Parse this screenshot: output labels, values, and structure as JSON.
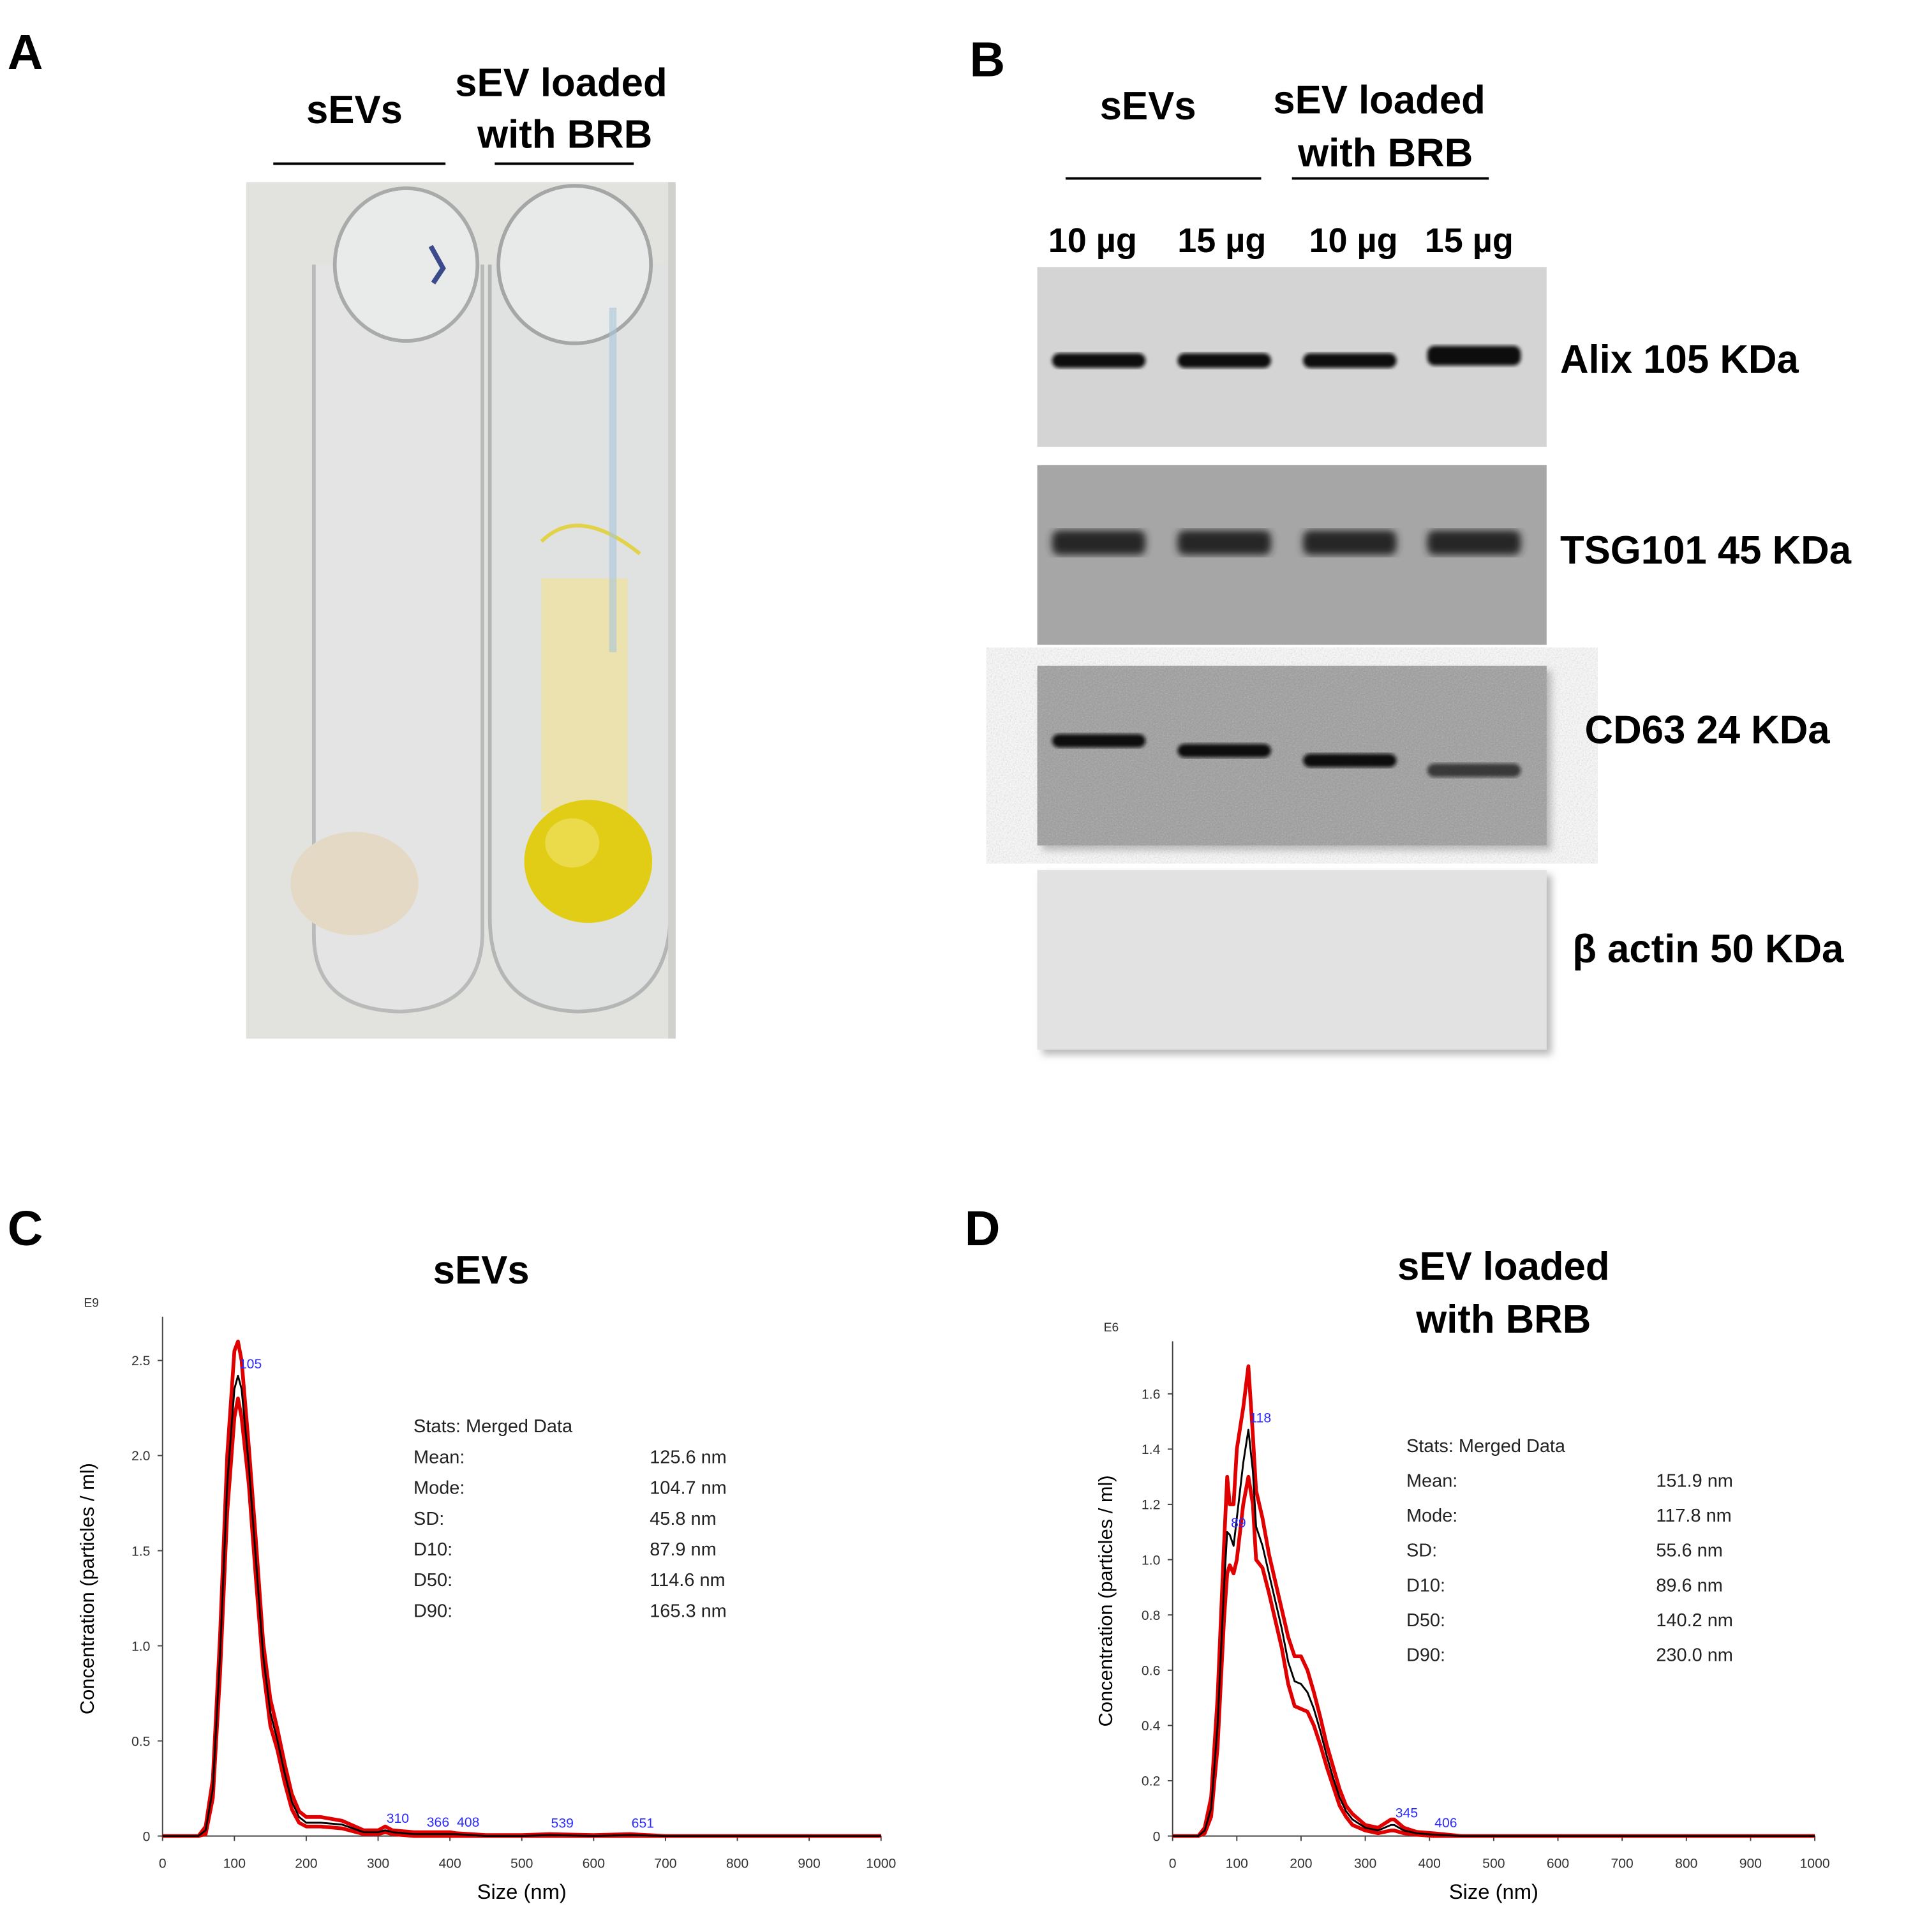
{
  "panel_a": {
    "label": "A",
    "group_1": "sEVs",
    "group_2": [
      "sEV loaded",
      "with BRB"
    ]
  },
  "panel_b": {
    "label": "B",
    "group_1": "sEVs",
    "group_2": [
      "sEV loaded",
      "with BRB"
    ],
    "lanes": [
      "10 µg",
      "15 µg",
      "10 µg",
      "15 µg"
    ],
    "blots": [
      "Alix  105 KDa",
      "TSG101 45 KDa",
      "CD63 24 KDa",
      "β actin  50 KDa"
    ]
  },
  "chart_data": [
    {
      "type": "line",
      "panel": "C",
      "title": [
        "sEVs"
      ],
      "exponent": "E9",
      "x_label": "Size (nm)",
      "y_label": "Concentration (particles / ml)",
      "x": [
        0,
        50,
        60,
        70,
        80,
        90,
        100,
        105,
        110,
        120,
        130,
        140,
        150,
        160,
        170,
        180,
        190,
        200,
        220,
        250,
        280,
        300,
        310,
        320,
        350,
        366,
        400,
        408,
        450,
        500,
        539,
        600,
        651,
        700,
        800,
        900,
        1000
      ],
      "series": [
        {
          "color": "#e00000",
          "values": [
            0,
            0,
            0.05,
            0.3,
            1.05,
            2.0,
            2.55,
            2.6,
            2.5,
            2.05,
            1.55,
            1.02,
            0.72,
            0.56,
            0.38,
            0.22,
            0.13,
            0.1,
            0.1,
            0.08,
            0.03,
            0.03,
            0.05,
            0.03,
            0.02,
            0.02,
            0.02,
            0.015,
            0.005,
            0.005,
            0.01,
            0.005,
            0.01,
            0,
            0,
            0,
            0
          ]
        },
        {
          "color": "#e00000",
          "values": [
            0,
            0,
            0.01,
            0.2,
            0.85,
            1.7,
            2.2,
            2.3,
            2.2,
            1.85,
            1.35,
            0.88,
            0.58,
            0.45,
            0.28,
            0.14,
            0.07,
            0.05,
            0.05,
            0.04,
            0.01,
            0.01,
            0.02,
            0.01,
            0,
            0,
            0,
            0,
            0,
            0,
            0,
            0,
            0,
            0,
            0,
            0,
            0
          ]
        },
        {
          "color": "#000000",
          "values": [
            0,
            0,
            0.03,
            0.25,
            0.95,
            1.85,
            2.35,
            2.42,
            2.35,
            1.95,
            1.45,
            0.95,
            0.65,
            0.5,
            0.33,
            0.18,
            0.1,
            0.07,
            0.07,
            0.06,
            0.02,
            0.02,
            0.03,
            0.02,
            0.01,
            0.01,
            0.01,
            0.01,
            0,
            0,
            0.005,
            0,
            0.005,
            0,
            0,
            0,
            0
          ]
        }
      ],
      "peak_labels": [
        105,
        310,
        366,
        408,
        539,
        651
      ],
      "xlim": [
        0,
        1000
      ],
      "xticks": [
        0,
        100,
        200,
        300,
        400,
        500,
        600,
        700,
        800,
        900,
        1000
      ],
      "ylim": [
        0,
        2.73
      ],
      "yticks": [
        0,
        0.5,
        {
          "value": 1,
          "label": "1.0"
        },
        1.5,
        {
          "value": 2,
          "label": "2.0"
        },
        2.5
      ],
      "stats_title": "Stats: Merged Data",
      "stats": [
        [
          "Mean:",
          "125.6 nm"
        ],
        [
          "Mode:",
          "104.7 nm"
        ],
        [
          "SD:",
          "45.8 nm"
        ],
        [
          "D10:",
          "87.9 nm"
        ],
        [
          "D50:",
          "114.6 nm"
        ],
        [
          "D90:",
          "165.3 nm"
        ]
      ]
    },
    {
      "type": "line",
      "panel": "D",
      "title": [
        "sEV loaded",
        "with BRB"
      ],
      "exponent": "E6",
      "x_label": "Size (nm)",
      "y_label": "Concentration (particles / ml)",
      "x": [
        0,
        40,
        50,
        60,
        70,
        80,
        85,
        89,
        95,
        100,
        110,
        118,
        125,
        130,
        140,
        150,
        160,
        170,
        180,
        190,
        200,
        210,
        220,
        230,
        240,
        250,
        260,
        270,
        280,
        300,
        320,
        340,
        345,
        360,
        380,
        406,
        450,
        500,
        600,
        700,
        800,
        900,
        1000
      ],
      "series": [
        {
          "color": "#e00000",
          "values": [
            0,
            0,
            0.03,
            0.14,
            0.5,
            1.05,
            1.3,
            1.2,
            1.2,
            1.4,
            1.55,
            1.7,
            1.45,
            1.25,
            1.15,
            1.02,
            0.92,
            0.82,
            0.72,
            0.65,
            0.65,
            0.6,
            0.52,
            0.43,
            0.33,
            0.25,
            0.17,
            0.11,
            0.08,
            0.04,
            0.03,
            0.06,
            0.06,
            0.03,
            0.015,
            0.01,
            0,
            0,
            0,
            0,
            0,
            0,
            0
          ]
        },
        {
          "color": "#e00000",
          "values": [
            0,
            0,
            0.01,
            0.07,
            0.32,
            0.78,
            0.95,
            0.98,
            0.95,
            1.0,
            1.2,
            1.3,
            1.2,
            1.0,
            0.97,
            0.88,
            0.78,
            0.68,
            0.55,
            0.47,
            0.46,
            0.45,
            0.4,
            0.33,
            0.25,
            0.18,
            0.11,
            0.07,
            0.04,
            0.02,
            0.01,
            0.02,
            0.02,
            0.01,
            0.005,
            0,
            0,
            0,
            0,
            0,
            0,
            0,
            0
          ]
        },
        {
          "color": "#000000",
          "values": [
            0,
            0,
            0.02,
            0.1,
            0.4,
            0.9,
            1.1,
            1.09,
            1.05,
            1.15,
            1.35,
            1.47,
            1.32,
            1.12,
            1.05,
            0.95,
            0.85,
            0.75,
            0.63,
            0.56,
            0.55,
            0.52,
            0.46,
            0.38,
            0.29,
            0.21,
            0.14,
            0.09,
            0.06,
            0.03,
            0.02,
            0.04,
            0.04,
            0.02,
            0.01,
            0.005,
            0,
            0,
            0,
            0,
            0,
            0,
            0
          ]
        }
      ],
      "peak_labels": [
        89,
        118,
        345,
        406
      ],
      "xlim": [
        0,
        1000
      ],
      "xticks": [
        0,
        100,
        200,
        300,
        400,
        500,
        600,
        700,
        800,
        900,
        1000
      ],
      "ylim": [
        0,
        1.79
      ],
      "yticks": [
        0,
        0.2,
        0.4,
        0.6,
        0.8,
        {
          "value": 1,
          "label": "1.0"
        },
        1.2,
        1.4,
        1.6
      ],
      "stats_title": "Stats: Merged Data",
      "stats": [
        [
          "Mean:",
          "151.9 nm"
        ],
        [
          "Mode:",
          "117.8 nm"
        ],
        [
          "SD:",
          "55.6 nm"
        ],
        [
          "D10:",
          "89.6 nm"
        ],
        [
          "D50:",
          "140.2 nm"
        ],
        [
          "D90:",
          "230.0 nm"
        ]
      ]
    }
  ]
}
